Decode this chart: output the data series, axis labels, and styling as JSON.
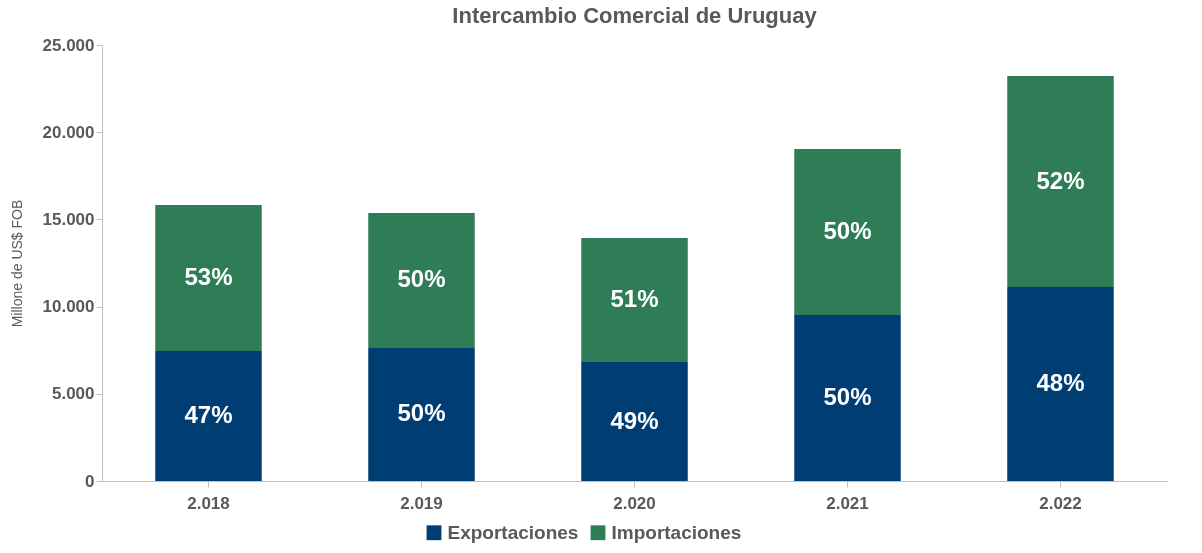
{
  "chart_data": {
    "type": "bar",
    "title": "Intercambio Comercial de Uruguay",
    "ylabel": "Millone de US$ FOB",
    "categories": [
      "2.018",
      "2.019",
      "2.020",
      "2.021",
      "2.022"
    ],
    "stacked": true,
    "series": [
      {
        "name": "Exportaciones",
        "color": "#003d73",
        "values": [
          7450,
          7630,
          6820,
          9520,
          11120
        ]
      },
      {
        "name": "Importaciones",
        "color": "#2e7d57",
        "values": [
          8380,
          7740,
          7110,
          9520,
          12100
        ]
      }
    ],
    "annotations": [
      "47%",
      "50%",
      "49%",
      "50%",
      "48%",
      "53%",
      "50%",
      "51%",
      "50%",
      "52%"
    ],
    "ylim": [
      0,
      25000
    ],
    "yticks": [
      {
        "value": 0,
        "label": "0"
      },
      {
        "value": 5000,
        "label": "5.000"
      },
      {
        "value": 10000,
        "label": "10.000"
      },
      {
        "value": 15000,
        "label": "15.000"
      },
      {
        "value": 20000,
        "label": "20.000"
      },
      {
        "value": 25000,
        "label": "25.000"
      }
    ],
    "grid": false,
    "legend": "bottom"
  }
}
